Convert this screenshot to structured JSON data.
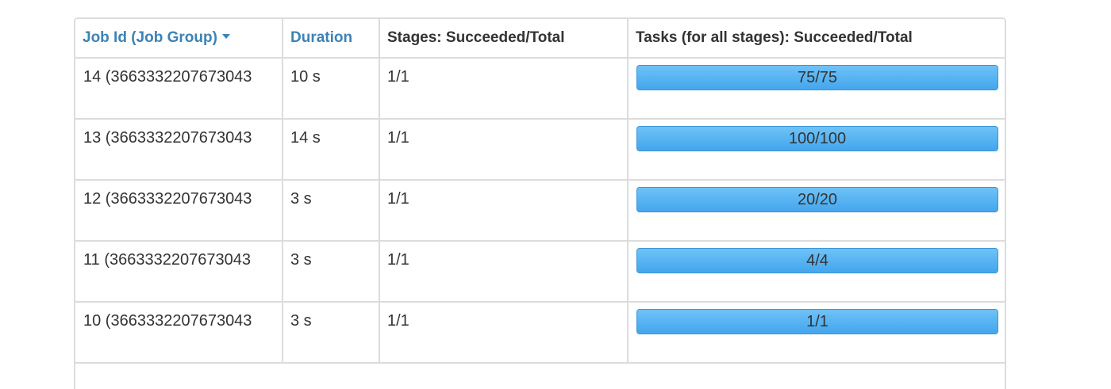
{
  "table": {
    "headers": {
      "job_id": "Job Id (Job Group)",
      "duration": "Duration",
      "stages": "Stages: Succeeded/Total",
      "tasks": "Tasks (for all stages): Succeeded/Total"
    },
    "sort_indicator_icon": "caret-down-icon",
    "progress_color": "#55b4f2",
    "rows": [
      {
        "job_id": "14 (3663332207673043",
        "duration": "10 s",
        "stages": "1/1",
        "tasks": "75/75",
        "progress": 1.0
      },
      {
        "job_id": "13 (3663332207673043",
        "duration": "14 s",
        "stages": "1/1",
        "tasks": "100/100",
        "progress": 1.0
      },
      {
        "job_id": "12 (3663332207673043",
        "duration": "3 s",
        "stages": "1/1",
        "tasks": "20/20",
        "progress": 1.0
      },
      {
        "job_id": "11 (3663332207673043",
        "duration": "3 s",
        "stages": "1/1",
        "tasks": "4/4",
        "progress": 1.0
      },
      {
        "job_id": "10 (3663332207673043",
        "duration": "3 s",
        "stages": "1/1",
        "tasks": "1/1",
        "progress": 1.0
      }
    ]
  }
}
